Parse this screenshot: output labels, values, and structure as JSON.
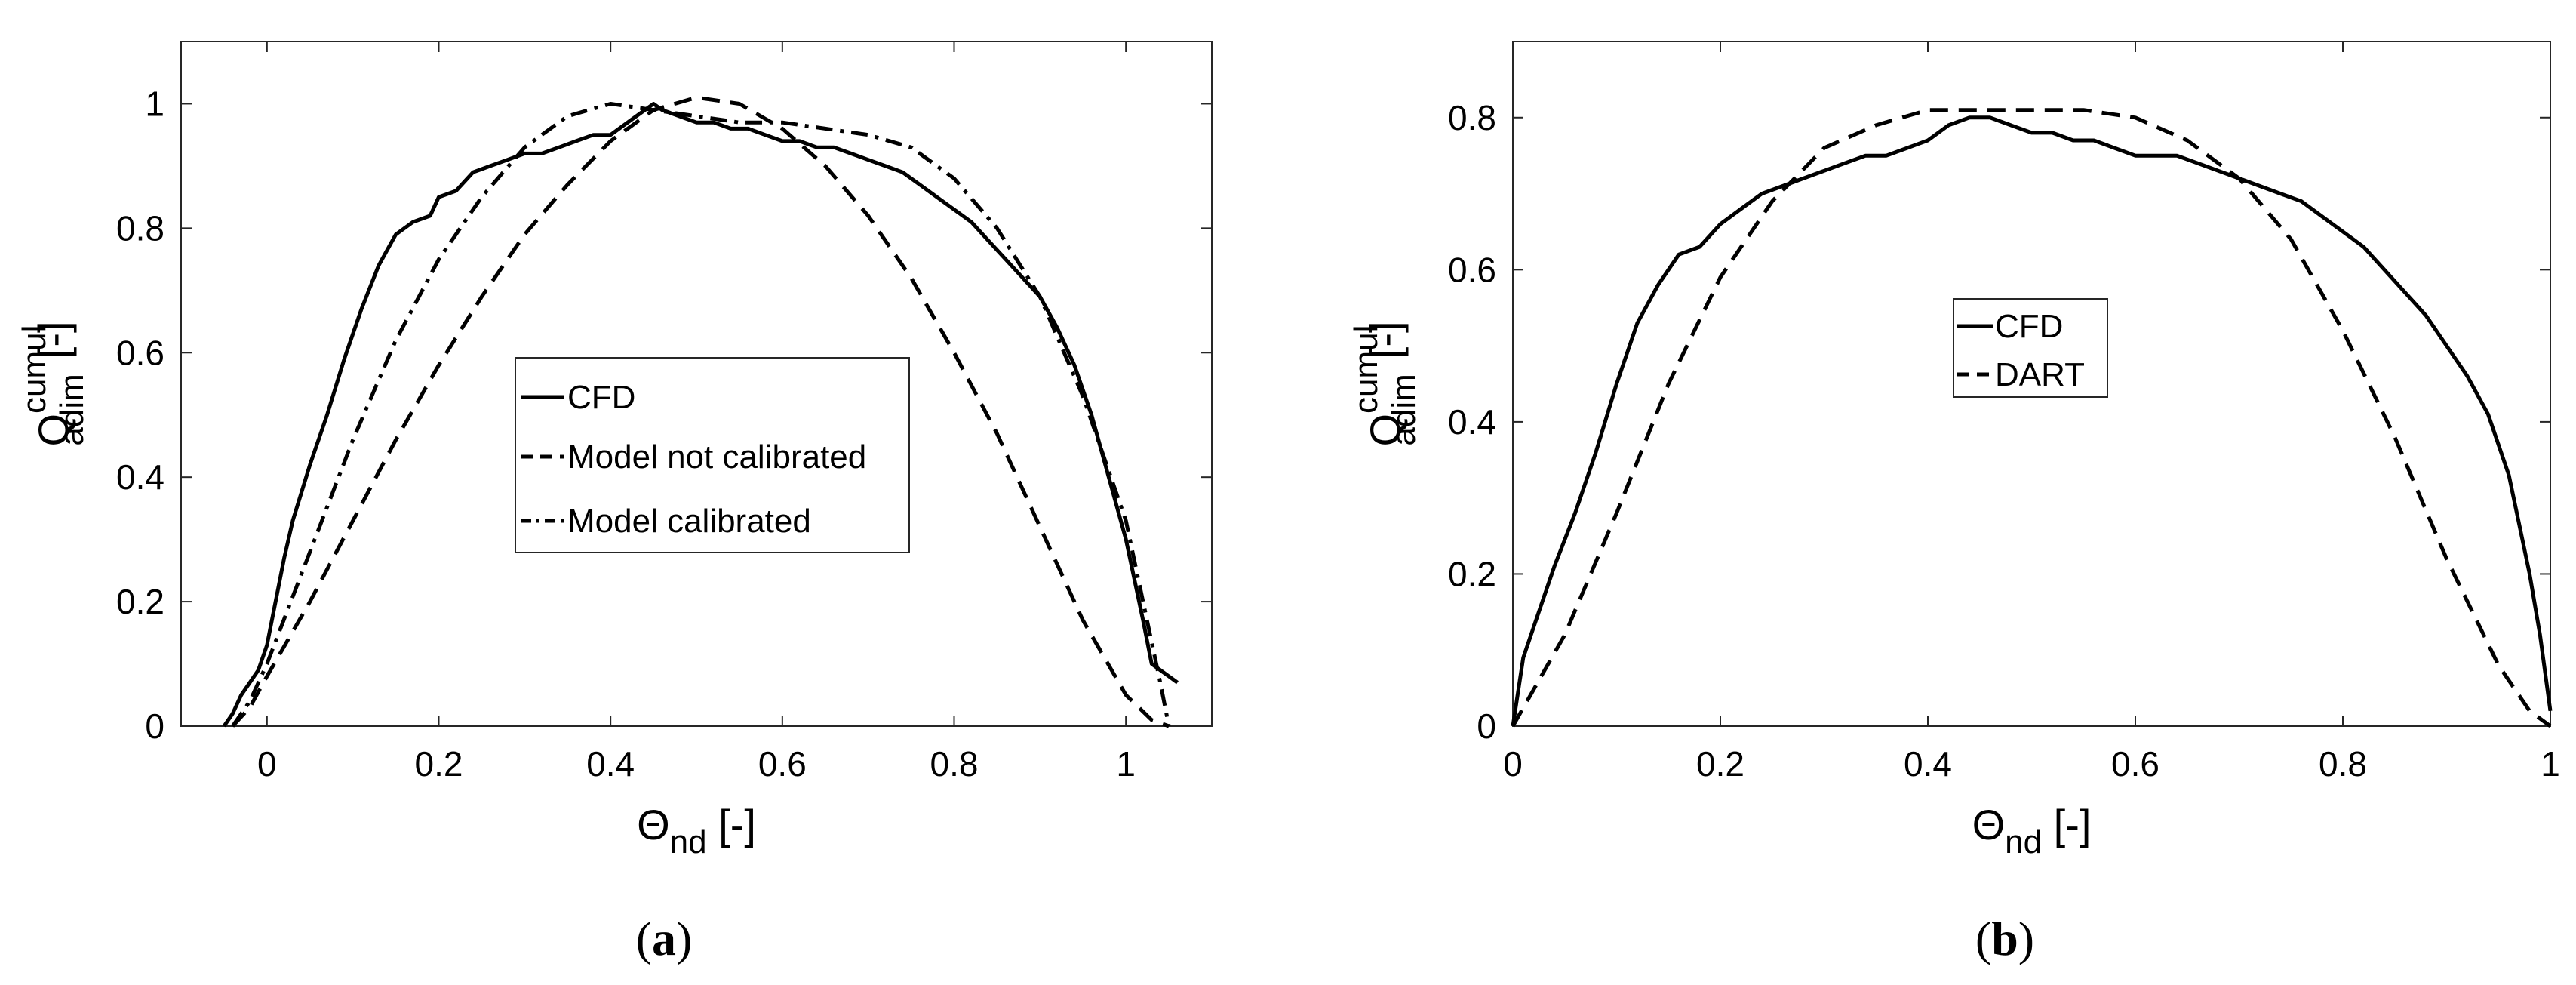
{
  "chart_data": [
    {
      "id": "a",
      "type": "line",
      "caption": {
        "open": "(",
        "letter": "a",
        "close": ")"
      },
      "xlabel": {
        "main": "Θ",
        "sub": "nd",
        "unit": "[-]"
      },
      "ylabel": {
        "main": "Q",
        "sub": "adim",
        "sup": "cumul",
        "unit": "[-]"
      },
      "xlim": [
        -0.1,
        1.1
      ],
      "ylim": [
        0,
        1.1
      ],
      "xticks": [
        0,
        0.2,
        0.4,
        0.6,
        0.8,
        1
      ],
      "xtick_labels": [
        "0",
        "0.2",
        "0.4",
        "0.6",
        "0.8",
        "1"
      ],
      "yticks": [
        0,
        0.2,
        0.4,
        0.6,
        0.8,
        1
      ],
      "ytick_labels": [
        "0",
        "0.2",
        "0.4",
        "0.6",
        "0.8",
        "1"
      ],
      "legend_position": "center",
      "series": [
        {
          "name": "CFD",
          "style": "solid",
          "x": [
            -0.05,
            -0.04,
            -0.03,
            -0.02,
            -0.01,
            0.0,
            0.01,
            0.02,
            0.03,
            0.05,
            0.07,
            0.09,
            0.11,
            0.13,
            0.15,
            0.17,
            0.19,
            0.2,
            0.22,
            0.24,
            0.26,
            0.28,
            0.3,
            0.32,
            0.34,
            0.36,
            0.38,
            0.4,
            0.42,
            0.44,
            0.45,
            0.46,
            0.48,
            0.5,
            0.52,
            0.54,
            0.56,
            0.58,
            0.6,
            0.62,
            0.64,
            0.66,
            0.68,
            0.7,
            0.72,
            0.74,
            0.76,
            0.78,
            0.8,
            0.82,
            0.84,
            0.86,
            0.88,
            0.9,
            0.92,
            0.94,
            0.96,
            0.98,
            1.0,
            1.02,
            1.03,
            1.04,
            1.05,
            1.06
          ],
          "y": [
            0.0,
            0.02,
            0.05,
            0.07,
            0.09,
            0.13,
            0.2,
            0.27,
            0.33,
            0.42,
            0.5,
            0.59,
            0.67,
            0.74,
            0.79,
            0.81,
            0.82,
            0.85,
            0.86,
            0.89,
            0.9,
            0.91,
            0.92,
            0.92,
            0.93,
            0.94,
            0.95,
            0.95,
            0.97,
            0.99,
            1.0,
            0.99,
            0.98,
            0.97,
            0.97,
            0.96,
            0.96,
            0.95,
            0.94,
            0.94,
            0.93,
            0.93,
            0.92,
            0.91,
            0.9,
            0.89,
            0.87,
            0.85,
            0.83,
            0.81,
            0.78,
            0.75,
            0.72,
            0.69,
            0.64,
            0.58,
            0.5,
            0.4,
            0.3,
            0.17,
            0.1,
            0.09,
            0.08,
            0.07
          ]
        },
        {
          "name": "Model not calibrated",
          "style": "dashed",
          "x": [
            -0.04,
            -0.02,
            0.0,
            0.05,
            0.1,
            0.15,
            0.2,
            0.25,
            0.3,
            0.35,
            0.4,
            0.45,
            0.5,
            0.55,
            0.6,
            0.65,
            0.7,
            0.75,
            0.8,
            0.85,
            0.9,
            0.95,
            1.0,
            1.03,
            1.05
          ],
          "y": [
            0.0,
            0.03,
            0.08,
            0.2,
            0.33,
            0.46,
            0.58,
            0.69,
            0.79,
            0.87,
            0.94,
            0.99,
            1.01,
            1.0,
            0.96,
            0.9,
            0.82,
            0.72,
            0.6,
            0.47,
            0.32,
            0.17,
            0.05,
            0.01,
            0.0
          ]
        },
        {
          "name": "Model calibrated",
          "style": "dashdot",
          "x": [
            -0.04,
            -0.02,
            0.0,
            0.05,
            0.1,
            0.15,
            0.2,
            0.25,
            0.3,
            0.35,
            0.4,
            0.45,
            0.5,
            0.55,
            0.6,
            0.65,
            0.7,
            0.75,
            0.8,
            0.85,
            0.9,
            0.95,
            1.0,
            1.02,
            1.04,
            1.05
          ],
          "y": [
            0.0,
            0.04,
            0.1,
            0.28,
            0.46,
            0.62,
            0.75,
            0.85,
            0.93,
            0.98,
            1.0,
            0.99,
            0.98,
            0.97,
            0.97,
            0.96,
            0.95,
            0.93,
            0.88,
            0.8,
            0.69,
            0.53,
            0.33,
            0.2,
            0.07,
            0.0
          ]
        }
      ]
    },
    {
      "id": "b",
      "type": "line",
      "caption": {
        "open": "(",
        "letter": "b",
        "close": ")"
      },
      "xlabel": {
        "main": "Θ",
        "sub": "nd",
        "unit": "[-]"
      },
      "ylabel": {
        "main": "Q",
        "sub": "adim",
        "sup": "cumul",
        "unit": "[-]"
      },
      "xlim": [
        0,
        1
      ],
      "ylim": [
        0,
        0.9
      ],
      "xticks": [
        0,
        0.2,
        0.4,
        0.6,
        0.8,
        1
      ],
      "xtick_labels": [
        "0",
        "0.2",
        "0.4",
        "0.6",
        "0.8",
        "1"
      ],
      "yticks": [
        0,
        0.2,
        0.4,
        0.6,
        0.8
      ],
      "ytick_labels": [
        "0",
        "0.2",
        "0.4",
        "0.6",
        "0.8"
      ],
      "legend_position": "center",
      "series": [
        {
          "name": "CFD",
          "style": "solid",
          "x": [
            0.0,
            0.01,
            0.02,
            0.04,
            0.06,
            0.08,
            0.1,
            0.12,
            0.14,
            0.16,
            0.18,
            0.2,
            0.22,
            0.24,
            0.26,
            0.28,
            0.3,
            0.32,
            0.34,
            0.36,
            0.38,
            0.4,
            0.42,
            0.44,
            0.46,
            0.48,
            0.5,
            0.52,
            0.54,
            0.56,
            0.58,
            0.6,
            0.62,
            0.64,
            0.66,
            0.68,
            0.7,
            0.72,
            0.74,
            0.76,
            0.78,
            0.8,
            0.82,
            0.84,
            0.86,
            0.88,
            0.9,
            0.92,
            0.94,
            0.96,
            0.98,
            0.99,
            1.0
          ],
          "y": [
            0.0,
            0.09,
            0.13,
            0.21,
            0.28,
            0.36,
            0.45,
            0.53,
            0.58,
            0.62,
            0.63,
            0.66,
            0.68,
            0.7,
            0.71,
            0.72,
            0.73,
            0.74,
            0.75,
            0.75,
            0.76,
            0.77,
            0.79,
            0.8,
            0.8,
            0.79,
            0.78,
            0.78,
            0.77,
            0.77,
            0.76,
            0.75,
            0.75,
            0.75,
            0.74,
            0.73,
            0.72,
            0.71,
            0.7,
            0.69,
            0.67,
            0.65,
            0.63,
            0.6,
            0.57,
            0.54,
            0.5,
            0.46,
            0.41,
            0.33,
            0.2,
            0.12,
            0.02
          ]
        },
        {
          "name": "DART",
          "style": "dashed",
          "x": [
            0.0,
            0.05,
            0.1,
            0.15,
            0.2,
            0.25,
            0.3,
            0.35,
            0.4,
            0.45,
            0.5,
            0.55,
            0.6,
            0.65,
            0.7,
            0.75,
            0.8,
            0.85,
            0.9,
            0.95,
            0.98,
            1.0
          ],
          "y": [
            0.0,
            0.12,
            0.28,
            0.45,
            0.59,
            0.69,
            0.76,
            0.79,
            0.81,
            0.81,
            0.81,
            0.81,
            0.8,
            0.77,
            0.72,
            0.64,
            0.52,
            0.38,
            0.22,
            0.08,
            0.02,
            0.0
          ]
        }
      ]
    }
  ]
}
